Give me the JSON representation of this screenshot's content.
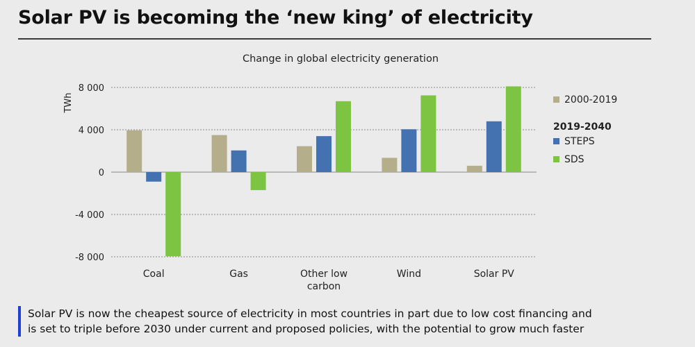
{
  "slide": {
    "headline": "Solar PV is becoming the ‘new king’ of electricity",
    "caption_line1": "Solar PV is now the cheapest source of electricity in most countries in part due to low cost financing and",
    "caption_line2": "is set to triple before 2030 under current and proposed policies, with the potential to grow much faster"
  },
  "chart_data": {
    "type": "bar",
    "title": "Change in global electricity generation",
    "ylabel": "TWh",
    "xlabel": "",
    "ylim": [
      -8000,
      8000
    ],
    "yticks": [
      8000,
      4000,
      0,
      -4000,
      -8000
    ],
    "ytick_labels": [
      "8 000",
      "4 000",
      "0",
      "-4 000",
      "-8 000"
    ],
    "grid": true,
    "legend_position": "right",
    "categories": [
      [
        "Coal"
      ],
      [
        "Gas"
      ],
      [
        "Other low",
        "carbon"
      ],
      [
        "Wind"
      ],
      [
        "Solar PV"
      ]
    ],
    "series": [
      {
        "name": "2000-2019",
        "color": "#b5ae8a",
        "values": [
          3950,
          3500,
          2450,
          1350,
          600
        ]
      },
      {
        "name": "STEPS",
        "color": "#4472b0",
        "values": [
          -900,
          2050,
          3400,
          4050,
          4800
        ]
      },
      {
        "name": "SDS",
        "color": "#7dc443",
        "values": [
          -7950,
          -1700,
          6700,
          7250,
          8100
        ]
      }
    ],
    "legend_group_title": "2019-2040"
  }
}
